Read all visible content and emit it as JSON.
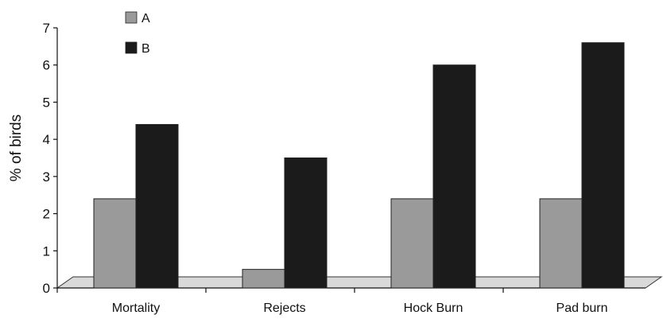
{
  "chart_data": {
    "type": "bar",
    "categories": [
      "Mortality",
      "Rejects",
      "Hock Burn",
      "Pad burn"
    ],
    "series": [
      {
        "name": "A",
        "values": [
          2.4,
          0.5,
          2.4,
          2.4
        ],
        "color": "#9a9a9a"
      },
      {
        "name": "B",
        "values": [
          4.4,
          3.5,
          6.0,
          6.6
        ],
        "color": "#1b1b1b"
      }
    ],
    "ylabel": "% of birds",
    "xlabel": "",
    "ylim": [
      0,
      7
    ],
    "yticks": [
      "0",
      "1",
      "2",
      "3",
      "4",
      "5",
      "6",
      "7"
    ],
    "grid": false,
    "legend_position": "top-left",
    "floor_color": "#d9d9d9"
  }
}
